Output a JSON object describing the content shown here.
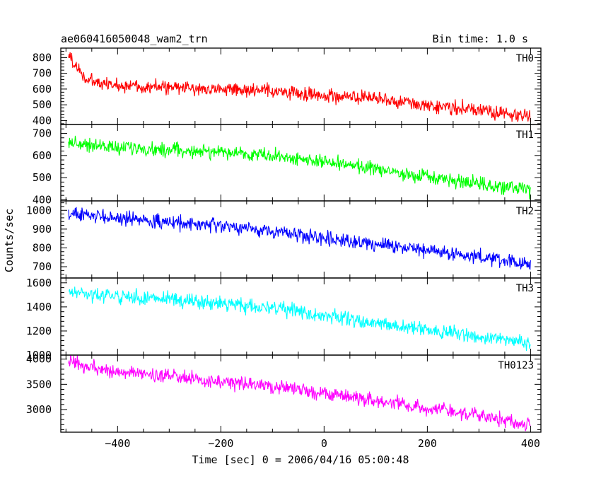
{
  "header": {
    "title": "ae060416050048_wam2_trn",
    "bin_time": "Bin time: 1.0 s"
  },
  "axes": {
    "xlabel": "Time [sec] 0 = 2006/04/16 05:00:48",
    "ylabel": "Counts/sec"
  },
  "chart_data": {
    "type": "line",
    "title": "ae060416050048_wam2_trn",
    "subtitle": "Bin time: 1.0 s",
    "xlabel": "Time [sec] 0 = 2006/04/16 05:00:48",
    "ylabel": "Counts/sec",
    "xlim": [
      -510,
      420
    ],
    "x_ticks": [
      -400,
      -200,
      0,
      200,
      400
    ],
    "grid": false,
    "panels": [
      {
        "name": "TH0",
        "color": "#ff0000",
        "ylim": [
          375,
          860
        ],
        "y_ticks": [
          400,
          500,
          600,
          700,
          800
        ],
        "x_range": [
          -495,
          400
        ],
        "series_outline": [
          [
            -495,
            820
          ],
          [
            -480,
            740
          ],
          [
            -460,
            660
          ],
          [
            -430,
            630
          ],
          [
            -400,
            625
          ],
          [
            -300,
            610
          ],
          [
            -200,
            600
          ],
          [
            -100,
            585
          ],
          [
            0,
            560
          ],
          [
            100,
            535
          ],
          [
            200,
            500
          ],
          [
            300,
            465
          ],
          [
            400,
            420
          ]
        ]
      },
      {
        "name": "TH1",
        "color": "#00ff00",
        "ylim": [
          395,
          740
        ],
        "y_ticks": [
          400,
          500,
          600,
          700
        ],
        "x_range": [
          -495,
          400
        ],
        "series_outline": [
          [
            -495,
            660
          ],
          [
            -400,
            635
          ],
          [
            -300,
            625
          ],
          [
            -200,
            615
          ],
          [
            -100,
            600
          ],
          [
            0,
            570
          ],
          [
            100,
            540
          ],
          [
            200,
            500
          ],
          [
            300,
            470
          ],
          [
            400,
            440
          ]
        ]
      },
      {
        "name": "TH2",
        "color": "#0000ff",
        "ylim": [
          640,
          1050
        ],
        "y_ticks": [
          700,
          800,
          900,
          1000
        ],
        "x_range": [
          -495,
          400
        ],
        "series_outline": [
          [
            -495,
            980
          ],
          [
            -400,
            960
          ],
          [
            -300,
            935
          ],
          [
            -200,
            915
          ],
          [
            -100,
            890
          ],
          [
            0,
            855
          ],
          [
            100,
            820
          ],
          [
            200,
            790
          ],
          [
            300,
            750
          ],
          [
            400,
            710
          ]
        ]
      },
      {
        "name": "TH3",
        "color": "#00ffff",
        "ylim": [
          1000,
          1640
        ],
        "y_ticks": [
          1000,
          1200,
          1400,
          1600
        ],
        "x_range": [
          -495,
          400
        ],
        "series_outline": [
          [
            -495,
            1520
          ],
          [
            -400,
            1490
          ],
          [
            -300,
            1460
          ],
          [
            -200,
            1430
          ],
          [
            -100,
            1390
          ],
          [
            0,
            1330
          ],
          [
            100,
            1270
          ],
          [
            200,
            1210
          ],
          [
            300,
            1150
          ],
          [
            400,
            1100
          ]
        ]
      },
      {
        "name": "TH0123",
        "color": "#ff00ff",
        "ylim": [
          2550,
          4080
        ],
        "y_ticks": [
          3000,
          3500,
          4000
        ],
        "x_range": [
          -495,
          400
        ],
        "series_outline": [
          [
            -495,
            3950
          ],
          [
            -450,
            3820
          ],
          [
            -400,
            3750
          ],
          [
            -300,
            3650
          ],
          [
            -200,
            3550
          ],
          [
            -100,
            3450
          ],
          [
            0,
            3320
          ],
          [
            100,
            3180
          ],
          [
            200,
            3030
          ],
          [
            300,
            2880
          ],
          [
            400,
            2700
          ]
        ]
      }
    ]
  }
}
